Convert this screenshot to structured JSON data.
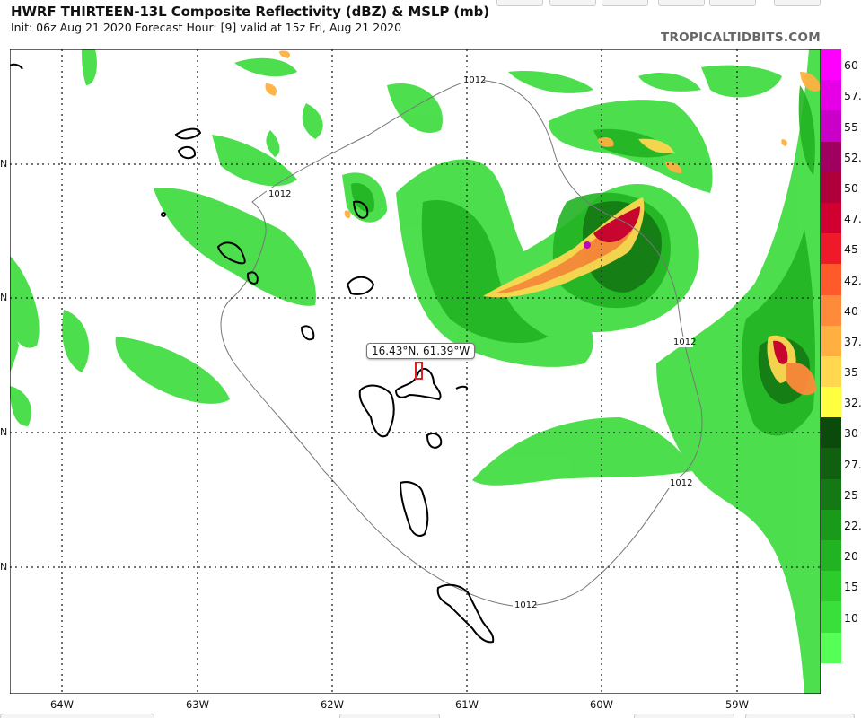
{
  "header": {
    "title": "HWRF THIRTEEN-13L Composite Reflectivity (dBZ) & MSLP (mb)",
    "subtitle": "Init: 06z Aug 21 2020   Forecast Hour: [9]   valid at 15z Fri, Aug 21 2020",
    "brand": "TROPICALTIDBITS.COM"
  },
  "map": {
    "longitude_labels": [
      "64W",
      "63W",
      "62W",
      "61W",
      "60W",
      "59W"
    ],
    "latitude_tick_labels": [
      "N",
      "N",
      "N",
      "N"
    ],
    "isobar_label": "1012",
    "cursor_readout": "16.43°N, 61.39°W"
  },
  "colorbar": {
    "unit": "dBZ",
    "levels": [
      "60",
      "57.",
      "55",
      "52.",
      "50",
      "47.",
      "45",
      "42.",
      "40",
      "37.",
      "35",
      "32.",
      "30",
      "27.",
      "25",
      "22.",
      "20",
      "15",
      "10"
    ],
    "colors": [
      "#ff00ff",
      "#e600e6",
      "#c800c8",
      "#a00060",
      "#b0003c",
      "#d00030",
      "#ee1a2a",
      "#ff5a2a",
      "#ff8a3a",
      "#ffb040",
      "#ffd850",
      "#ffff40",
      "#0a4a0a",
      "#0f600f",
      "#147814",
      "#1a9a1a",
      "#22b322",
      "#2ccc2c",
      "#3ae03a",
      "#55ff55",
      "#ffffff"
    ]
  }
}
